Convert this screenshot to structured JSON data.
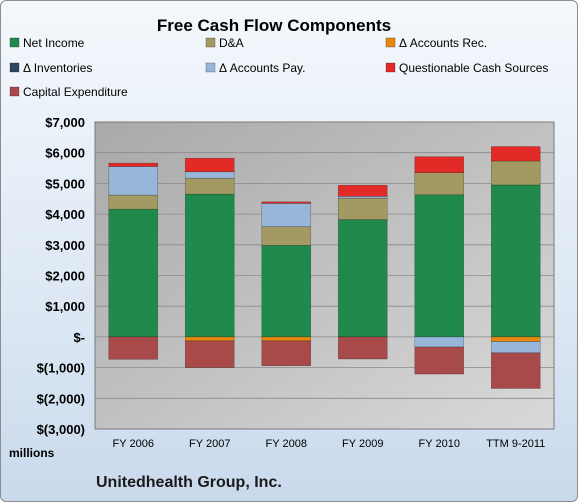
{
  "chart_data": {
    "type": "bar",
    "stacked": true,
    "title": "Free Cash Flow Components",
    "xlabel": "",
    "ylabel": "",
    "unit_label": "millions",
    "footer": "Unitedhealth Group, Inc.",
    "categories": [
      "FY 2006",
      "FY 2007",
      "FY 2008",
      "FY 2009",
      "FY 2010",
      "TTM 9-2011"
    ],
    "ylim": [
      -3000,
      7000
    ],
    "yticks": [
      7000,
      6000,
      5000,
      4000,
      3000,
      2000,
      1000,
      0,
      -1000,
      -2000,
      -3000
    ],
    "ytick_labels": [
      "$7,000",
      "$6,000",
      "$5,000",
      "$4,000",
      "$3,000",
      "$2,000",
      "$1,000",
      "$-",
      "$(1,000)",
      "$(2,000)",
      "$(3,000)"
    ],
    "grid": true,
    "legend_position": "top",
    "series": [
      {
        "name": "Net Income",
        "color": "#1f8a4c",
        "values": [
          4160,
          4650,
          2980,
          3820,
          4630,
          4950
        ]
      },
      {
        "name": "D&A",
        "color": "#a39a63",
        "values": [
          460,
          520,
          610,
          700,
          720,
          780
        ]
      },
      {
        "name": "Δ Accounts Rec.",
        "color": "#e8870e",
        "values": [
          0,
          -130,
          -130,
          0,
          0,
          -150
        ]
      },
      {
        "name": "Δ Inventories",
        "color": "#2a4660",
        "values": [
          0,
          0,
          0,
          0,
          0,
          0
        ]
      },
      {
        "name": "Δ Accounts Pay.",
        "color": "#97b6d9",
        "values": [
          930,
          210,
          760,
          60,
          -330,
          -370
        ]
      },
      {
        "name": "Questionable Cash Sources",
        "color": "#e42a27",
        "values": [
          110,
          440,
          50,
          360,
          520,
          470
        ]
      },
      {
        "name": "Capital Expenditure",
        "color": "#a94a4a",
        "values": [
          -730,
          -870,
          -810,
          -720,
          -880,
          -1160
        ]
      }
    ]
  }
}
